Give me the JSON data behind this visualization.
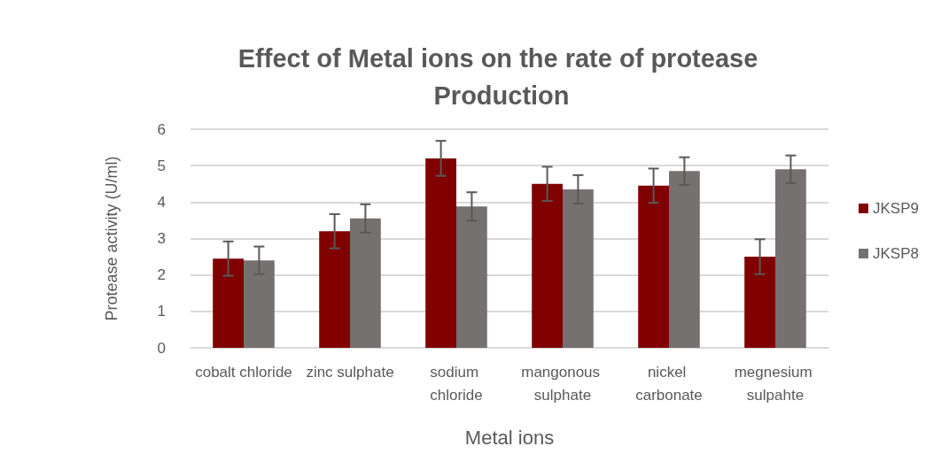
{
  "chart_data": {
    "type": "bar",
    "title": "Effect of Metal ions on the rate of protease Production",
    "xlabel": "Metal ions",
    "ylabel": "Protease activity (U/ml)",
    "categories": [
      "cobalt chloride",
      "zinc sulphate",
      "sodium chloride",
      "mangonous sulphate",
      "nickel carbonate",
      "megnesium sulpahte"
    ],
    "series": [
      {
        "name": "JKSP9",
        "color": "#800000",
        "values": [
          2.45,
          3.2,
          5.2,
          4.5,
          4.45,
          2.5
        ],
        "errors": [
          0.47,
          0.47,
          0.48,
          0.47,
          0.47,
          0.48
        ]
      },
      {
        "name": "JKSP8",
        "color": "#767171",
        "values": [
          2.4,
          3.55,
          3.88,
          4.35,
          4.85,
          4.9
        ],
        "errors": [
          0.38,
          0.39,
          0.39,
          0.39,
          0.38,
          0.38
        ]
      }
    ],
    "ylim": [
      0,
      6
    ],
    "yticks": [
      0,
      1,
      2,
      3,
      4,
      5,
      6
    ],
    "grid": "y",
    "legend": "right"
  }
}
